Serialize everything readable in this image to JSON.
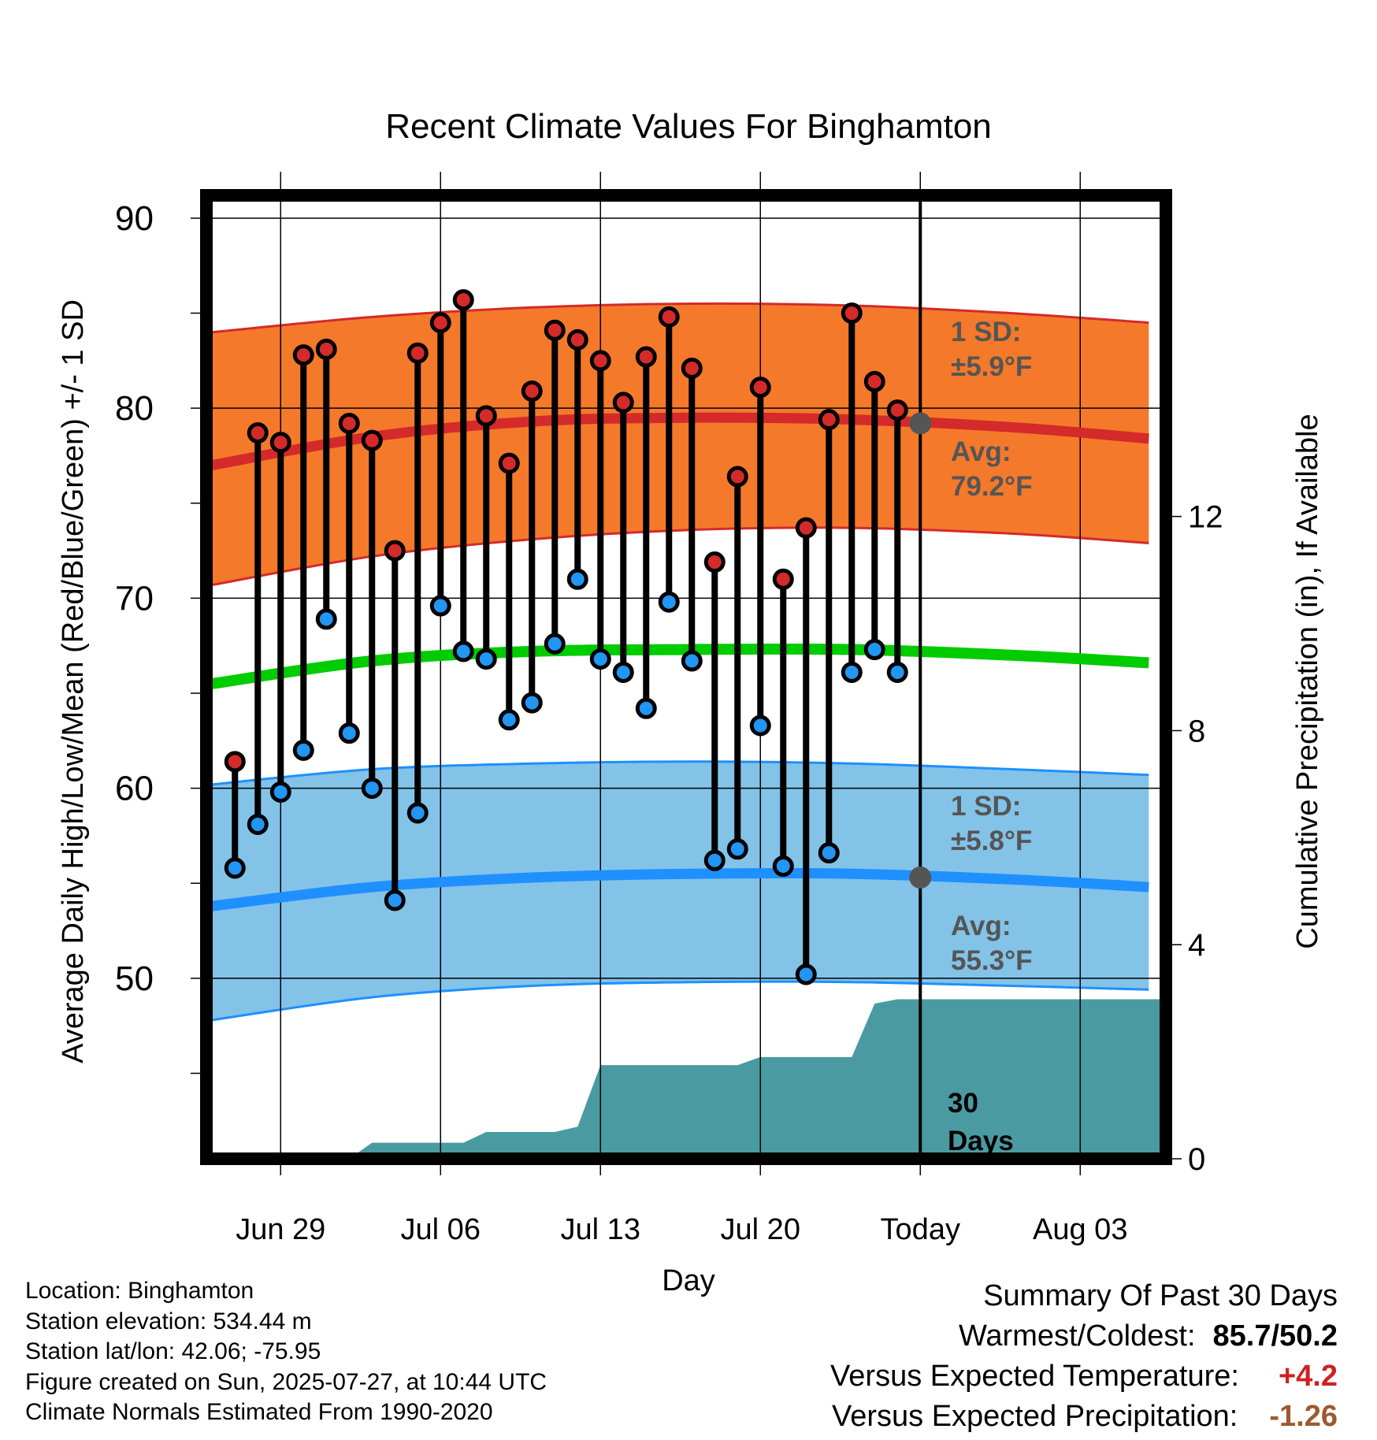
{
  "chart_data": {
    "type": "line",
    "title": "Recent Climate Values For Binghamton",
    "xlabel": "Day",
    "ylabel": "Average Daily High/Low/Mean (Red/Blue/Green) +/- 1 SD",
    "y2label": "Cumulative Precipitation (in), If Available",
    "ylim": [
      40.5,
      91.2
    ],
    "y2lim": [
      0,
      18
    ],
    "yticks": [
      "50",
      "60",
      "70",
      "80",
      "90"
    ],
    "y2ticks": [
      "0",
      "4",
      "8",
      "12"
    ],
    "x_tick_labels": [
      "Jun 29",
      "Jul 06",
      "Jul 13",
      "Jul 20",
      "Today",
      "Aug 03"
    ],
    "x_tick_dates": [
      "2025-06-29",
      "2025-07-06",
      "2025-07-13",
      "2025-07-20",
      "2025-07-27",
      "2025-08-03"
    ],
    "xlim": [
      "2025-06-25 18:00",
      "2025-08-06 18:00"
    ],
    "dates": [
      "2025-06-27",
      "2025-06-28",
      "2025-06-29",
      "2025-06-30",
      "2025-07-01",
      "2025-07-02",
      "2025-07-03",
      "2025-07-04",
      "2025-07-05",
      "2025-07-06",
      "2025-07-07",
      "2025-07-08",
      "2025-07-09",
      "2025-07-10",
      "2025-07-11",
      "2025-07-12",
      "2025-07-13",
      "2025-07-14",
      "2025-07-15",
      "2025-07-16",
      "2025-07-17",
      "2025-07-18",
      "2025-07-19",
      "2025-07-20",
      "2025-07-21",
      "2025-07-22",
      "2025-07-23",
      "2025-07-24",
      "2025-07-25",
      "2025-07-26"
    ],
    "series": [
      {
        "name": "High",
        "color": "#d42a2a",
        "values": [
          61.4,
          78.7,
          78.2,
          82.8,
          83.1,
          79.2,
          78.3,
          72.5,
          82.9,
          84.5,
          85.7,
          79.6,
          77.1,
          80.9,
          84.1,
          83.6,
          82.5,
          80.3,
          82.7,
          84.8,
          82.1,
          71.9,
          76.4,
          81.1,
          71.0,
          73.7,
          79.4,
          85.0,
          81.4,
          79.9
        ]
      },
      {
        "name": "Low",
        "color": "#2196f3",
        "values": [
          55.8,
          58.1,
          59.8,
          62.0,
          68.9,
          62.9,
          60.0,
          54.1,
          58.7,
          69.6,
          67.2,
          66.8,
          63.6,
          64.5,
          67.6,
          71.0,
          66.8,
          66.1,
          64.2,
          69.8,
          66.7,
          56.2,
          56.8,
          63.3,
          55.9,
          50.2,
          56.6,
          66.1,
          67.3,
          66.1
        ]
      }
    ],
    "normals": {
      "dates": [
        "2025-06-26",
        "2025-07-03",
        "2025-07-10",
        "2025-07-17",
        "2025-07-24",
        "2025-07-31",
        "2025-08-06"
      ],
      "high_avg": [
        77.0,
        78.5,
        79.3,
        79.5,
        79.4,
        79.0,
        78.4
      ],
      "high_minus_sd": [
        70.7,
        72.2,
        73.1,
        73.6,
        73.7,
        73.4,
        72.9
      ],
      "high_plus_sd": [
        84.0,
        84.8,
        85.3,
        85.5,
        85.4,
        85.0,
        84.5
      ],
      "mean_avg": [
        65.5,
        66.7,
        67.2,
        67.3,
        67.3,
        67.0,
        66.6
      ],
      "low_avg": [
        53.8,
        54.8,
        55.3,
        55.5,
        55.5,
        55.2,
        54.8
      ],
      "low_minus_sd": [
        47.8,
        49.0,
        49.6,
        49.8,
        49.8,
        49.6,
        49.4
      ],
      "low_plus_sd": [
        60.2,
        61.0,
        61.3,
        61.4,
        61.3,
        61.0,
        60.7
      ],
      "high_color": "#f5792a",
      "high_line_color": "#d42a2a",
      "mean_color": "#00cc00",
      "low_color": "#83c3e8",
      "low_line_color": "#1e90ff"
    },
    "precip": {
      "color": "#4a9aa2",
      "dates": [
        "2025-06-25 18:00",
        "2025-07-02",
        "2025-07-03",
        "2025-07-07",
        "2025-07-08",
        "2025-07-11",
        "2025-07-12",
        "2025-07-13",
        "2025-07-18",
        "2025-07-19",
        "2025-07-20",
        "2025-07-24",
        "2025-07-25",
        "2025-07-26",
        "2025-08-06 18:00"
      ],
      "values": [
        0.0,
        0.0,
        0.3,
        0.3,
        0.5,
        0.5,
        0.6,
        1.75,
        1.75,
        1.75,
        1.9,
        1.9,
        2.9,
        2.98,
        2.98
      ]
    },
    "annotations": {
      "high_sd_label": "1 SD:",
      "high_sd_value": "±5.9°F",
      "high_avg_label": "Avg:",
      "high_avg_value": "79.2°F",
      "low_sd_label": "1 SD:",
      "low_sd_value": "±5.8°F",
      "low_avg_label": "Avg:",
      "low_avg_value": "55.3°F",
      "window_label_1": "30",
      "window_label_2": "Days",
      "today_high_avg": 79.2,
      "today_low_avg": 55.3,
      "marker_color": "#555555"
    }
  },
  "footer": {
    "location": "Location: Binghamton",
    "elevation": "Station elevation: 534.44 m",
    "latlon": "Station lat/lon: 42.06; -75.95",
    "created": "Figure created on Sun, 2025-07-27, at 10:44 UTC",
    "normals_period": "Climate Normals Estimated From 1990-2020"
  },
  "summary": {
    "heading": "Summary Of Past 30 Days",
    "warm_cold_label": "Warmest/Coldest:",
    "warm_cold_value": "85.7/50.2",
    "temp_label": "Versus Expected Temperature:",
    "temp_value": "+4.2",
    "temp_color": "#cc2222",
    "precip_label": "Versus Expected Precipitation:",
    "precip_value": "-1.26",
    "precip_color": "#9c5a2c"
  }
}
